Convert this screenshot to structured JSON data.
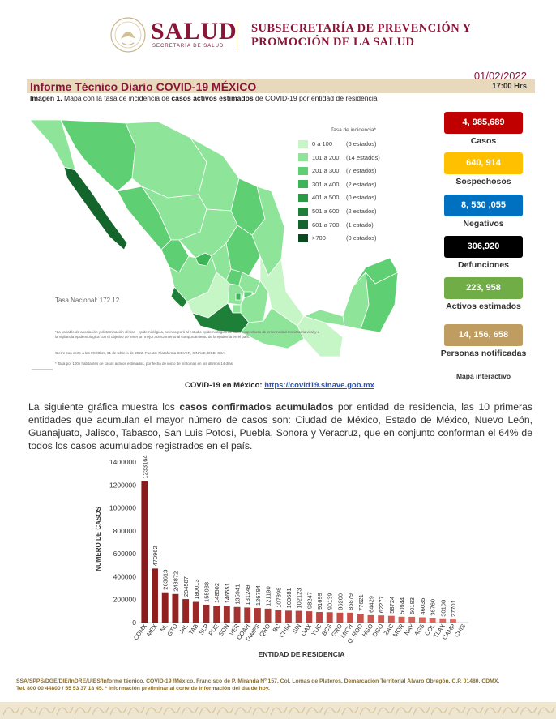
{
  "header": {
    "brand": "SALUD",
    "secretaria": "SECRETARÍA DE SALUD",
    "subsecretaria_l1": "SUBSECRETARÍA DE PREVENCIÓN Y",
    "subsecretaria_l2": "PROMOCIÓN DE LA SALUD"
  },
  "report": {
    "title": "Informe Técnico Diario COVID-19 MÉXICO",
    "date": "01/02/2022",
    "time": "17:00 Hrs",
    "caption_bold1": "Imagen 1.",
    "caption_t1": " Mapa con la tasa de incidencia de ",
    "caption_bold2": "casos activos estimados",
    "caption_t2": " de COVID-19 por entidad de residencia"
  },
  "map": {
    "legend_title": "Tasa de incidencia*",
    "legend": [
      {
        "range": "0 a 100",
        "count": "(6 estados)",
        "color": "#c6f5c6"
      },
      {
        "range": "101 a 200",
        "count": "(14 estados)",
        "color": "#8ee59a"
      },
      {
        "range": "201 a 300",
        "count": "(7 estados)",
        "color": "#5fcf73"
      },
      {
        "range": "301 a 400",
        "count": "(2 estados)",
        "color": "#3bb556"
      },
      {
        "range": "401 a 500",
        "count": "(0 estados)",
        "color": "#2a9a44"
      },
      {
        "range": "501 a 600",
        "count": "(2 estados)",
        "color": "#1e8038"
      },
      {
        "range": "601 a 700",
        "count": "(1 estado)",
        "color": "#14652c"
      },
      {
        "range": ">700",
        "count": "(0 estados)",
        "color": "#0b4a1f"
      }
    ],
    "tasa_nacional": "Tasa Nacional: 172.12",
    "note1": "*La variable de asociación y dictaminación clínica - epidemiológica, se incorporó al estudio epidemiológico de caso sospechoso de enfermedad respiratoria viral y a la vigilancia epidemiológica con el objetivo de tener un mejor acercamiento al comportamiento de la epidemia en el país.",
    "note2": "Cierre con corte a las 09:00hrs, 01 de febrero de 2022. Fuente: Plataforma SISVER, SINAVE, DGE, SSA.",
    "note3": "* Tasa por 100k habitantes de casos activos estimados, por fecha de inicio de síntomas en los últimos 14 días."
  },
  "link": {
    "label": "COVID-19 en México: ",
    "url": "https://covid19.sinave.gob.mx"
  },
  "stats": [
    {
      "value": "4, 985,689",
      "label": "Casos",
      "bg": "#c00000",
      "fg": "#ffffff"
    },
    {
      "value": "640, 914",
      "label": "Sospechosos",
      "bg": "#ffc000",
      "fg": "#ffffff"
    },
    {
      "value": "8, 530 ,055",
      "label": "Negativos",
      "bg": "#0070c0",
      "fg": "#ffffff"
    },
    {
      "value": "306,920",
      "label": "Defunciones",
      "bg": "#000000",
      "fg": "#ffffff"
    },
    {
      "value": "223, 958",
      "label": "Activos estimados",
      "bg": "#70ad47",
      "fg": "#ffffff"
    },
    {
      "value": "14, 156, 658",
      "label": "Personas notificadas",
      "bg": "#bf9d60",
      "fg": "#ffffff"
    }
  ],
  "mapa_interactivo": "Mapa interactivo",
  "paragraph": {
    "t1": "La siguiente gráfica muestra los ",
    "b1": "casos confirmados acumulados",
    "t2": " por entidad de residencia, las 10 primeras entidades que acumulan el mayor número de casos son: Ciudad de México, Estado de México, Nuevo León, Guanajuato, Jalisco, Tabasco, San Luis Potosí, Puebla, Sonora y Veracruz, que en conjunto conforman el 64% de todos los casos acumulados registrados en el país."
  },
  "chart_data": {
    "type": "bar",
    "ylabel": "NUMERO DE CASOS",
    "xlabel": "ENTIDAD DE RESIDENCIA",
    "ylim": [
      0,
      1400000
    ],
    "yticks": [
      "0",
      "200000",
      "400000",
      "600000",
      "800000",
      "1000000",
      "1200000",
      "1400000"
    ],
    "categories": [
      "CDMX",
      "MEX",
      "NL",
      "GTO",
      "JAL",
      "TAB",
      "SLP",
      "PUE",
      "SON",
      "VER",
      "COAH",
      "TAMPS",
      "QRO",
      "BC",
      "CHIH",
      "SIN",
      "OAX",
      "YUC",
      "BCS",
      "GRO",
      "MICH",
      "Q. ROO",
      "HGO",
      "DGO",
      "ZAC",
      "MOR",
      "NAY",
      "AGS",
      "COL",
      "TLAX",
      "CAMP",
      "CHIS"
    ],
    "values": [
      1233164,
      470962,
      263613,
      248872,
      204587,
      180013,
      155938,
      148502,
      146551,
      135941,
      131249,
      126794,
      121190,
      107898,
      103681,
      102123,
      98247,
      91699,
      90139,
      86200,
      85879,
      77621,
      64429,
      62277,
      58724,
      50944,
      50193,
      46035,
      36760,
      30108,
      27701,
      0
    ],
    "value_labels": [
      "1233164",
      "470962",
      "263613",
      "248872",
      "204587",
      "180013",
      "155938",
      "148502",
      "146551",
      "135941",
      "131249",
      "126794",
      "121190",
      "107898",
      "103681",
      "102123",
      "98247",
      "91699",
      "90139",
      "86200",
      "85879",
      "77621",
      "64429",
      "62277",
      "58724",
      "50944",
      "50193",
      "46035",
      "36760",
      "30108",
      "27701",
      ""
    ]
  },
  "footer": {
    "line1": "SSA/SPPS/DGE/DIE/InDRE/UIES/Informe técnico. COVID-19 /México. Francisco de P. Miranda Nº 157, Col. Lomas de Plateros, Demarcación Territorial Álvaro Obregón, C.P. 01480. CDMX.",
    "line2": "Tel. 800 00 44800 / 55 53 37 18 45. * Información preliminar al corte de información del día de hoy."
  }
}
